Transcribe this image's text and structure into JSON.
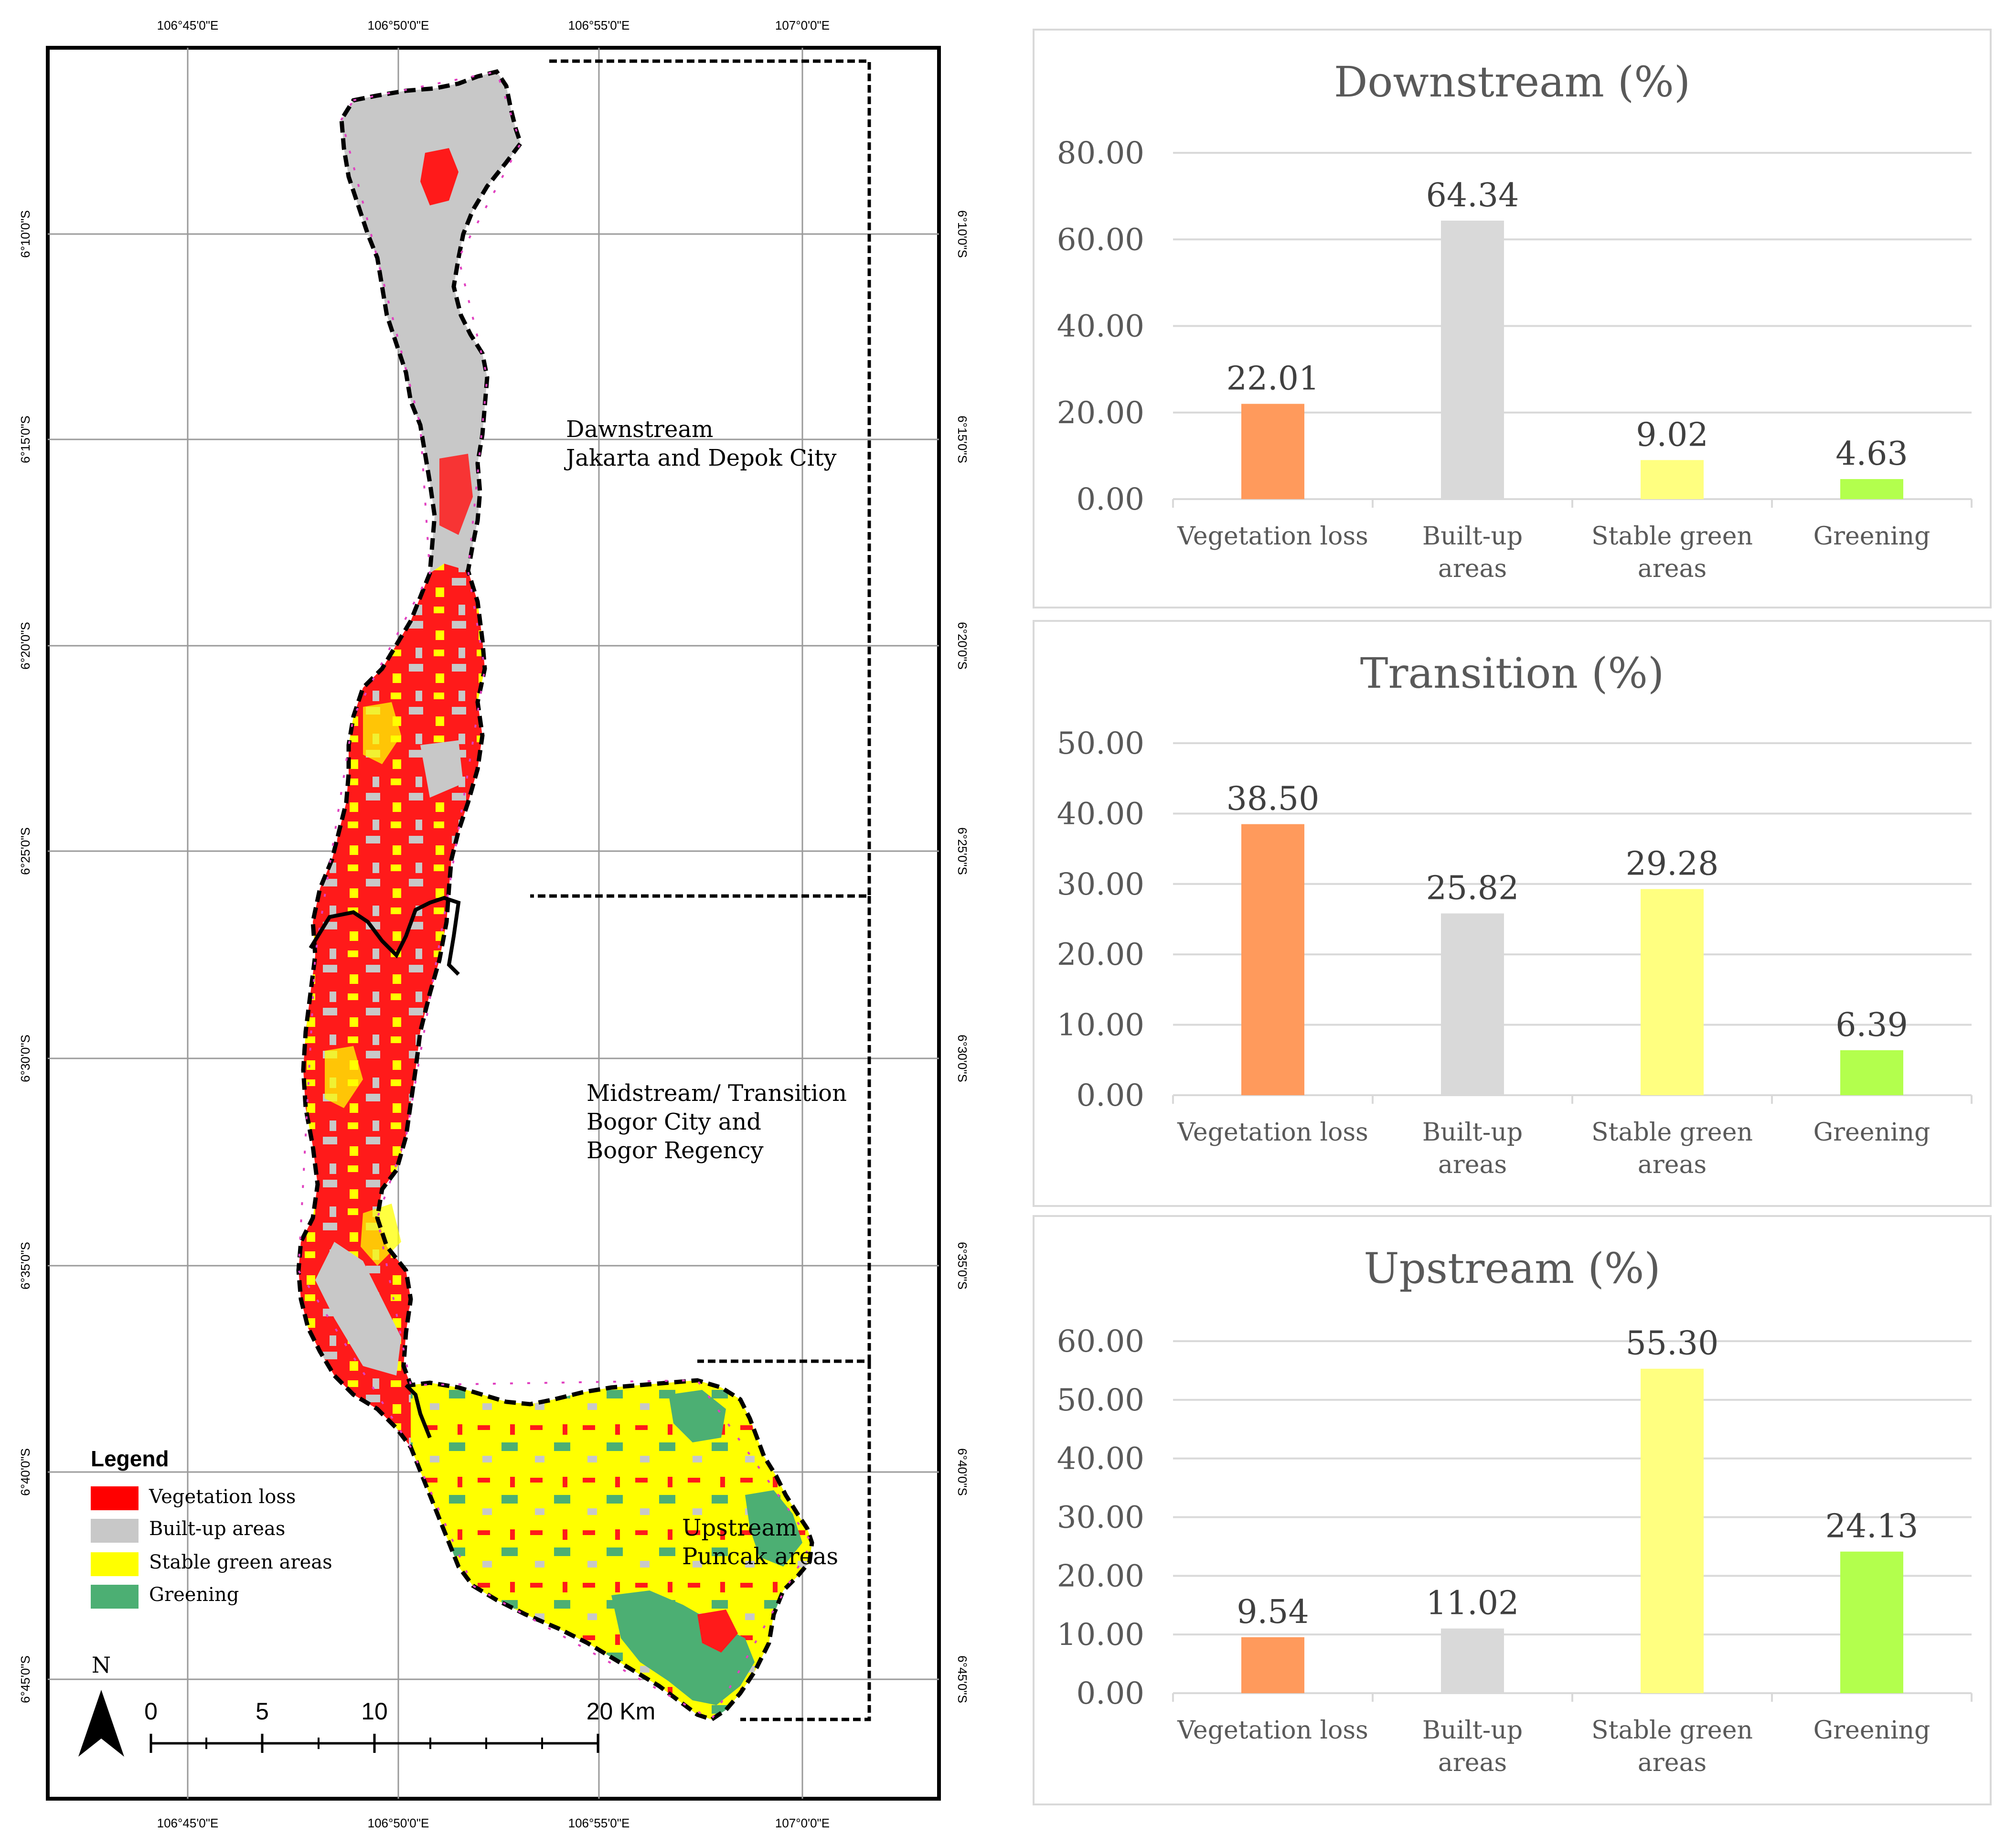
{
  "map": {
    "legend": {
      "title": "Legend",
      "items": [
        {
          "label": "Vegetation loss",
          "color": "#ff0000"
        },
        {
          "label": "Built-up areas",
          "color": "#c8c8c8"
        },
        {
          "label": "Stable green areas",
          "color": "#ffff00"
        },
        {
          "label": "Greening",
          "color": "#4caf73"
        }
      ]
    },
    "regions": {
      "downstream": [
        "Dawnstream",
        "Jakarta and Depok City"
      ],
      "midstream": [
        "Midstream/ Transition",
        "Bogor City and",
        "Bogor Regency"
      ],
      "upstream": [
        "Upstream",
        "Puncak areas"
      ]
    },
    "longitudes": [
      "106°45'0\"E",
      "106°50'0\"E",
      "106°55'0\"E",
      "107°0'0\"E"
    ],
    "latitudes": [
      "6°10'0\"S",
      "6°15'0\"S",
      "6°20'0\"S",
      "6°25'0\"S",
      "6°30'0\"S",
      "6°35'0\"S",
      "6°40'0\"S",
      "6°45'0\"S"
    ],
    "north_label": "N",
    "scale_labels": [
      "0",
      "5",
      "10",
      "20 Km"
    ]
  },
  "chart_data": [
    {
      "type": "bar",
      "title": "Downstream (%)",
      "categories": [
        "Vegetation loss",
        "Built-up areas",
        "Stable green areas",
        "Greening"
      ],
      "category_lines": [
        [
          "Vegetation loss"
        ],
        [
          "Built-up",
          "areas"
        ],
        [
          "Stable green",
          "areas"
        ],
        [
          "Greening"
        ]
      ],
      "values": [
        22.01,
        64.34,
        9.02,
        4.63
      ],
      "value_labels": [
        "22.01",
        "64.34",
        "9.02",
        "4.63"
      ],
      "colors": [
        "#ff9a5c",
        "#d9d9d9",
        "#ffff80",
        "#b3ff4d"
      ],
      "ylim": [
        0,
        80
      ],
      "yticks": [
        "0.00",
        "20.00",
        "40.00",
        "60.00",
        "80.00"
      ],
      "grid": true
    },
    {
      "type": "bar",
      "title": "Transition (%)",
      "categories": [
        "Vegetation loss",
        "Built-up areas",
        "Stable green areas",
        "Greening"
      ],
      "category_lines": [
        [
          "Vegetation loss"
        ],
        [
          "Built-up",
          "areas"
        ],
        [
          "Stable green",
          "areas"
        ],
        [
          "Greening"
        ]
      ],
      "values": [
        38.5,
        25.82,
        29.28,
        6.39
      ],
      "value_labels": [
        "38.50",
        "25.82",
        "29.28",
        "6.39"
      ],
      "colors": [
        "#ff9a5c",
        "#d9d9d9",
        "#ffff80",
        "#b3ff4d"
      ],
      "ylim": [
        0,
        50
      ],
      "yticks": [
        "0.00",
        "10.00",
        "20.00",
        "30.00",
        "40.00",
        "50.00"
      ],
      "grid": true
    },
    {
      "type": "bar",
      "title": "Upstream (%)",
      "categories": [
        "Vegetation loss",
        "Built-up areas",
        "Stable green areas",
        "Greening"
      ],
      "category_lines": [
        [
          "Vegetation loss"
        ],
        [
          "Built-up",
          "areas"
        ],
        [
          "Stable green",
          "areas"
        ],
        [
          "Greening"
        ]
      ],
      "values": [
        9.54,
        11.02,
        55.3,
        24.13
      ],
      "value_labels": [
        "9.54",
        "11.02",
        "55.30",
        "24.13"
      ],
      "colors": [
        "#ff9a5c",
        "#d9d9d9",
        "#ffff80",
        "#b3ff4d"
      ],
      "ylim": [
        0,
        60
      ],
      "yticks": [
        "0.00",
        "10.00",
        "20.00",
        "30.00",
        "40.00",
        "50.00",
        "60.00"
      ],
      "grid": true
    }
  ]
}
